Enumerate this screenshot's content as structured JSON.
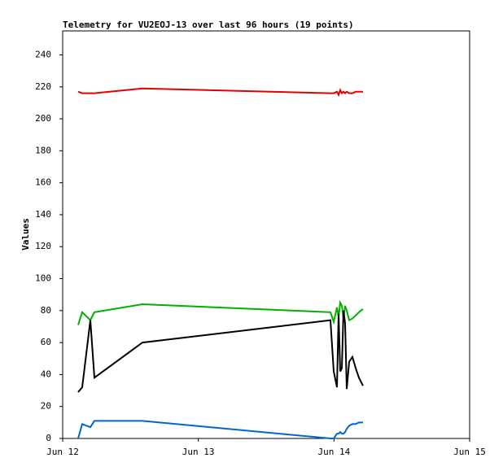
{
  "chart_data": {
    "type": "line",
    "title": "Telemetry for VU2EOJ-13 over last 96 hours (19 points)",
    "y_label": "Values",
    "x": [
      0.114,
      0.144,
      0.204,
      0.234,
      0.588,
      1.974,
      1.998,
      2.022,
      2.034,
      2.046,
      2.058,
      2.07,
      2.082,
      2.094,
      2.112,
      2.136,
      2.16,
      2.184,
      2.214
    ],
    "xlim": [
      0,
      3
    ],
    "xticks": [
      {
        "value": 0,
        "label": "Jun 12"
      },
      {
        "value": 1,
        "label": "Jun 13"
      },
      {
        "value": 2,
        "label": "Jun 14"
      },
      {
        "value": 3,
        "label": "Jun 15"
      }
    ],
    "ylim": [
      0,
      255
    ],
    "yticks": [
      0,
      20,
      40,
      60,
      80,
      100,
      120,
      140,
      160,
      180,
      200,
      220,
      240
    ],
    "grid": false,
    "series": [
      {
        "color": "#e00000",
        "values": [
          217,
          216,
          216,
          216,
          219,
          216,
          216,
          217,
          215,
          218,
          216,
          217,
          216,
          217,
          216,
          216,
          217,
          217,
          217
        ]
      },
      {
        "color": "#00b000",
        "values": [
          71,
          79,
          74,
          79,
          84,
          79,
          73,
          82,
          76,
          85,
          83,
          75,
          83,
          80,
          74,
          75,
          77,
          79,
          81
        ]
      },
      {
        "color": "#000000",
        "values": [
          29,
          32,
          74,
          38,
          60,
          74,
          42,
          32,
          78,
          42,
          44,
          80,
          72,
          31,
          48,
          51,
          44,
          38,
          33
        ]
      },
      {
        "color": "#0066cc",
        "values": [
          0,
          9,
          7,
          11,
          11,
          0,
          0,
          3,
          3,
          4,
          3,
          3,
          4,
          6,
          8,
          9,
          9,
          10,
          10
        ]
      }
    ]
  }
}
